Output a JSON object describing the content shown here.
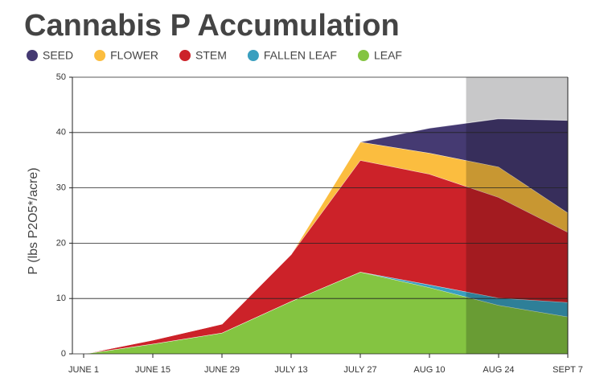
{
  "chart_data": {
    "type": "stacked_area",
    "title": "Cannabis P Accumulation",
    "y_label": "P (lbs P2O5*/acre)",
    "categories": [
      "JUNE 1",
      "JUNE 15",
      "JUNE 29",
      "JULY 13",
      "JULY 27",
      "AUG 10",
      "AUG 24",
      "SEPT 7"
    ],
    "series": [
      {
        "name": "LEAF",
        "color": "#84c441",
        "values": [
          0,
          1.8,
          3.8,
          9.5,
          14.8,
          12,
          8.8,
          6.7
        ]
      },
      {
        "name": "FALLEN LEAF",
        "color": "#3a9fbf",
        "values": [
          0,
          0,
          0,
          0,
          0,
          0.5,
          1.3,
          2.6
        ]
      },
      {
        "name": "STEM",
        "color": "#cc2229",
        "values": [
          0,
          0.7,
          1.6,
          8.5,
          20.2,
          20,
          18.2,
          12.7
        ]
      },
      {
        "name": "FLOWER",
        "color": "#fbbd3f",
        "values": [
          0,
          0,
          0,
          0,
          3.3,
          3.8,
          5.5,
          3.5
        ]
      },
      {
        "name": "SEED",
        "color": "#453a72",
        "values": [
          0,
          0,
          0,
          0,
          0,
          4.5,
          8.7,
          16.7
        ]
      }
    ],
    "legend_order": [
      4,
      3,
      2,
      1,
      0
    ],
    "ylim": [
      0,
      50
    ],
    "yticks": [
      0,
      10,
      20,
      30,
      40,
      50
    ],
    "grid": true
  }
}
